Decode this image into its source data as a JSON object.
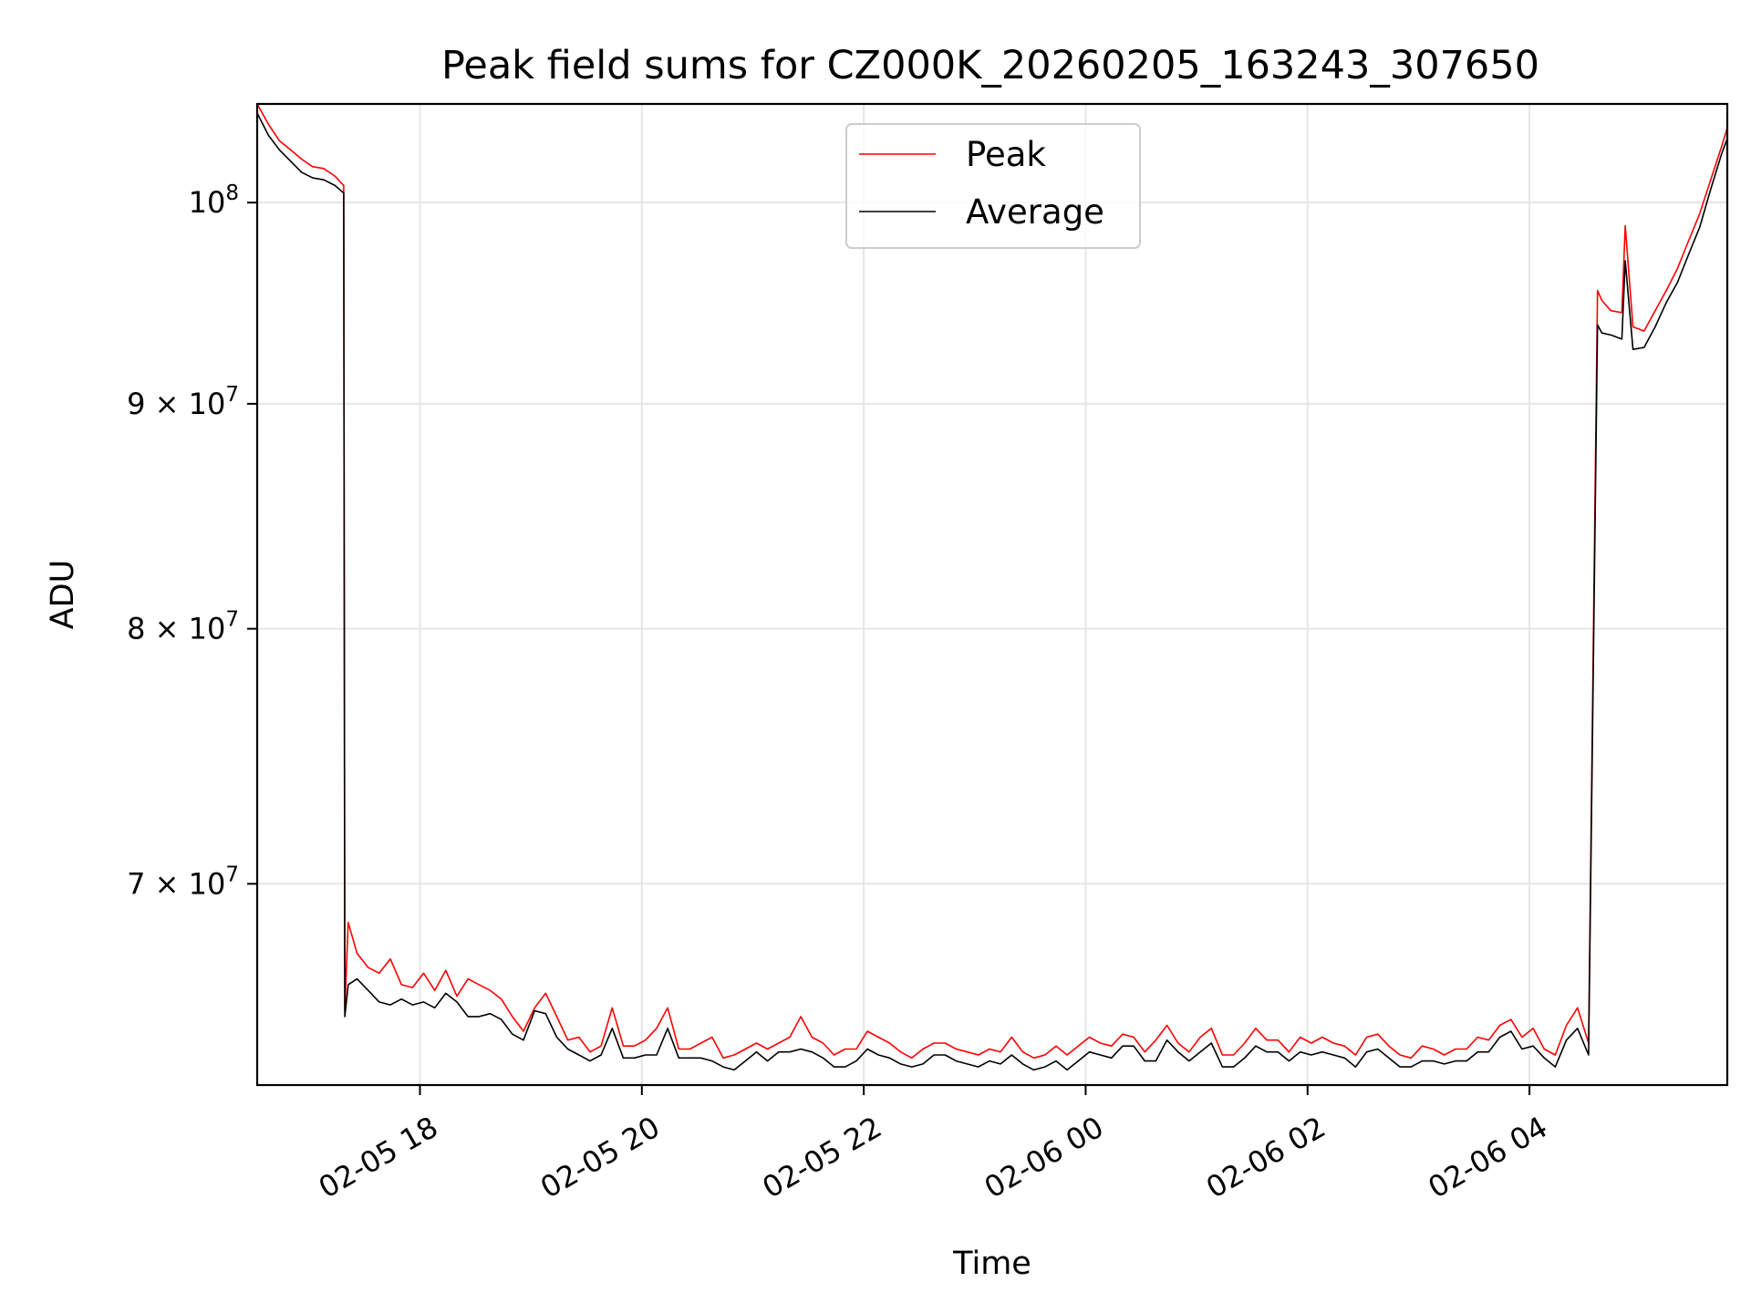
{
  "chart_data": {
    "type": "line",
    "title": "Peak field sums for CZ000K_20260205_163243_307650",
    "xlabel": "Time",
    "ylabel": "ADU",
    "yscale": "log",
    "x_unit": "hours since 2026-02-05 16:32",
    "xlim": [
      0.0,
      13.25
    ],
    "ylim": [
      63.0,
      105.3
    ],
    "y_unit": "ADU x 10^6",
    "grid": true,
    "legend_position": "top-center",
    "x_ticks": [
      {
        "value": 1.467,
        "label": "02-05 18"
      },
      {
        "value": 3.467,
        "label": "02-05 20"
      },
      {
        "value": 5.467,
        "label": "02-05 22"
      },
      {
        "value": 7.467,
        "label": "02-06 00"
      },
      {
        "value": 9.467,
        "label": "02-06 02"
      },
      {
        "value": 11.467,
        "label": "02-06 04"
      }
    ],
    "y_ticks": [
      {
        "value": 100,
        "label": "10",
        "exp": "8",
        "mult": ""
      },
      {
        "value": 90,
        "label": "10",
        "exp": "7",
        "mult": "9 × "
      },
      {
        "value": 80,
        "label": "10",
        "exp": "7",
        "mult": "8 × "
      },
      {
        "value": 70,
        "label": "10",
        "exp": "7",
        "mult": "7 × "
      }
    ],
    "series": [
      {
        "name": "Peak",
        "color": "#ff0000",
        "x": [
          0.0,
          0.1,
          0.2,
          0.3,
          0.4,
          0.5,
          0.6,
          0.7,
          0.78,
          0.79,
          0.82,
          0.9,
          1.0,
          1.1,
          1.2,
          1.3,
          1.4,
          1.5,
          1.6,
          1.7,
          1.8,
          1.9,
          2.0,
          2.1,
          2.2,
          2.3,
          2.4,
          2.5,
          2.6,
          2.7,
          2.8,
          2.9,
          3.0,
          3.1,
          3.2,
          3.3,
          3.4,
          3.5,
          3.6,
          3.7,
          3.8,
          3.9,
          4.0,
          4.1,
          4.2,
          4.3,
          4.4,
          4.5,
          4.6,
          4.7,
          4.8,
          4.9,
          5.0,
          5.1,
          5.2,
          5.3,
          5.4,
          5.5,
          5.6,
          5.7,
          5.8,
          5.9,
          6.0,
          6.1,
          6.2,
          6.3,
          6.4,
          6.5,
          6.6,
          6.7,
          6.8,
          6.9,
          7.0,
          7.1,
          7.2,
          7.3,
          7.4,
          7.5,
          7.6,
          7.7,
          7.8,
          7.9,
          8.0,
          8.1,
          8.2,
          8.3,
          8.4,
          8.5,
          8.6,
          8.7,
          8.8,
          8.9,
          9.0,
          9.1,
          9.2,
          9.3,
          9.4,
          9.5,
          9.6,
          9.7,
          9.8,
          9.9,
          10.0,
          10.1,
          10.2,
          10.3,
          10.4,
          10.5,
          10.6,
          10.7,
          10.8,
          10.9,
          11.0,
          11.1,
          11.2,
          11.3,
          11.4,
          11.5,
          11.6,
          11.7,
          11.8,
          11.9,
          12.0,
          12.08,
          12.12,
          12.2,
          12.3,
          12.33,
          12.4,
          12.5,
          12.6,
          12.7,
          12.8,
          12.9,
          13.0,
          13.1,
          13.2,
          13.25
        ],
        "values": [
          105.3,
          104.2,
          103.3,
          102.8,
          102.3,
          101.9,
          101.8,
          101.4,
          100.9,
          65.5,
          68.6,
          67.5,
          67.0,
          66.8,
          67.3,
          66.4,
          66.3,
          66.8,
          66.2,
          66.9,
          66.0,
          66.6,
          66.4,
          66.2,
          65.9,
          65.3,
          64.8,
          65.6,
          66.1,
          65.3,
          64.5,
          64.6,
          64.1,
          64.3,
          65.6,
          64.3,
          64.3,
          64.5,
          64.9,
          65.6,
          64.2,
          64.2,
          64.4,
          64.6,
          63.9,
          64.0,
          64.2,
          64.4,
          64.2,
          64.4,
          64.6,
          65.3,
          64.6,
          64.4,
          64.0,
          64.2,
          64.2,
          64.8,
          64.6,
          64.4,
          64.1,
          63.9,
          64.2,
          64.4,
          64.4,
          64.2,
          64.1,
          64.0,
          64.2,
          64.1,
          64.6,
          64.1,
          63.9,
          64.0,
          64.3,
          64.0,
          64.3,
          64.6,
          64.4,
          64.3,
          64.7,
          64.6,
          64.1,
          64.5,
          65.0,
          64.4,
          64.1,
          64.6,
          64.9,
          64.0,
          64.0,
          64.4,
          64.9,
          64.5,
          64.5,
          64.1,
          64.6,
          64.4,
          64.6,
          64.4,
          64.3,
          64.0,
          64.6,
          64.7,
          64.3,
          64.0,
          63.9,
          64.3,
          64.2,
          64.0,
          64.2,
          64.2,
          64.6,
          64.5,
          65.0,
          65.2,
          64.6,
          64.9,
          64.2,
          64.0,
          65.0,
          65.6,
          64.4,
          95.5,
          95.0,
          94.5,
          94.4,
          98.8,
          93.7,
          93.5,
          94.5,
          95.5,
          96.6,
          98.0,
          99.4,
          101.2,
          103.0,
          104.0
        ]
      },
      {
        "name": "Average",
        "color": "#000000",
        "x": [
          0.0,
          0.1,
          0.2,
          0.3,
          0.4,
          0.5,
          0.6,
          0.7,
          0.78,
          0.79,
          0.82,
          0.9,
          1.0,
          1.1,
          1.2,
          1.3,
          1.4,
          1.5,
          1.6,
          1.7,
          1.8,
          1.9,
          2.0,
          2.1,
          2.2,
          2.3,
          2.4,
          2.5,
          2.6,
          2.7,
          2.8,
          2.9,
          3.0,
          3.1,
          3.2,
          3.3,
          3.4,
          3.5,
          3.6,
          3.7,
          3.8,
          3.9,
          4.0,
          4.1,
          4.2,
          4.3,
          4.4,
          4.5,
          4.6,
          4.7,
          4.8,
          4.9,
          5.0,
          5.1,
          5.2,
          5.3,
          5.4,
          5.5,
          5.6,
          5.7,
          5.8,
          5.9,
          6.0,
          6.1,
          6.2,
          6.3,
          6.4,
          6.5,
          6.6,
          6.7,
          6.8,
          6.9,
          7.0,
          7.1,
          7.2,
          7.3,
          7.4,
          7.5,
          7.6,
          7.7,
          7.8,
          7.9,
          8.0,
          8.1,
          8.2,
          8.3,
          8.4,
          8.5,
          8.6,
          8.7,
          8.8,
          8.9,
          9.0,
          9.1,
          9.2,
          9.3,
          9.4,
          9.5,
          9.6,
          9.7,
          9.8,
          9.9,
          10.0,
          10.1,
          10.2,
          10.3,
          10.4,
          10.5,
          10.6,
          10.7,
          10.8,
          10.9,
          11.0,
          11.1,
          11.2,
          11.3,
          11.4,
          11.5,
          11.6,
          11.7,
          11.8,
          11.9,
          12.0,
          12.08,
          12.12,
          12.2,
          12.3,
          12.33,
          12.4,
          12.5,
          12.6,
          12.7,
          12.8,
          12.9,
          13.0,
          13.1,
          13.2,
          13.25
        ],
        "values": [
          104.8,
          103.6,
          102.8,
          102.2,
          101.6,
          101.3,
          101.2,
          100.9,
          100.5,
          65.3,
          66.4,
          66.6,
          66.2,
          65.8,
          65.7,
          65.9,
          65.7,
          65.8,
          65.6,
          66.1,
          65.8,
          65.3,
          65.3,
          65.4,
          65.2,
          64.7,
          64.5,
          65.5,
          65.4,
          64.6,
          64.2,
          64.0,
          63.8,
          64.0,
          64.9,
          63.9,
          63.9,
          64.0,
          64.0,
          64.9,
          63.9,
          63.9,
          63.9,
          63.8,
          63.6,
          63.5,
          63.8,
          64.1,
          63.8,
          64.1,
          64.1,
          64.2,
          64.1,
          63.9,
          63.6,
          63.6,
          63.8,
          64.2,
          64.0,
          63.9,
          63.7,
          63.6,
          63.7,
          64.0,
          64.0,
          63.8,
          63.7,
          63.6,
          63.8,
          63.7,
          64.0,
          63.7,
          63.5,
          63.6,
          63.8,
          63.5,
          63.8,
          64.1,
          64.0,
          63.9,
          64.3,
          64.3,
          63.8,
          63.8,
          64.5,
          64.1,
          63.8,
          64.1,
          64.4,
          63.6,
          63.6,
          63.9,
          64.3,
          64.1,
          64.1,
          63.8,
          64.1,
          64.0,
          64.1,
          64.0,
          63.9,
          63.6,
          64.1,
          64.2,
          63.9,
          63.6,
          63.6,
          63.8,
          63.8,
          63.7,
          63.8,
          63.8,
          64.1,
          64.1,
          64.6,
          64.8,
          64.2,
          64.3,
          63.9,
          63.6,
          64.5,
          64.9,
          64.0,
          93.8,
          93.4,
          93.3,
          93.1,
          97.0,
          92.6,
          92.7,
          93.7,
          94.9,
          95.9,
          97.3,
          98.7,
          100.7,
          102.6,
          103.4
        ]
      }
    ]
  }
}
